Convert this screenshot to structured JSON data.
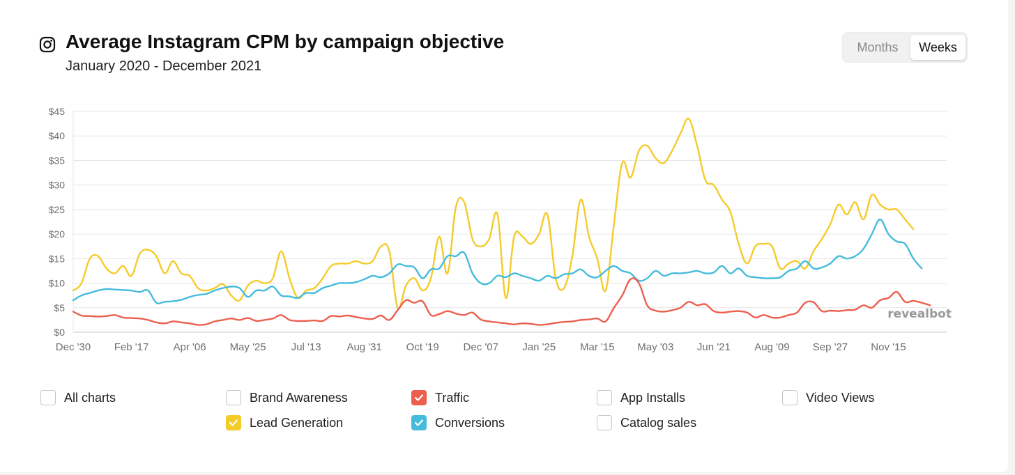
{
  "header": {
    "title": "Average Instagram CPM by campaign objective",
    "subtitle": "January 2020 - December 2021",
    "icon": "instagram-icon"
  },
  "toggle": {
    "months_label": "Months",
    "weeks_label": "Weeks",
    "selected": "Weeks"
  },
  "watermark": "revealbot",
  "colors": {
    "lead_generation": "#f5cb2a",
    "conversions": "#45bcdc",
    "traffic": "#ec5f4f",
    "grid": "#e6e6e6",
    "axis": "#c9c9c9"
  },
  "legend": [
    {
      "label": "All charts",
      "checked": false,
      "color": ""
    },
    {
      "label": "Brand Awareness",
      "checked": false,
      "color": ""
    },
    {
      "label": "Traffic",
      "checked": true,
      "color": "#ec5f4f"
    },
    {
      "label": "App Installs",
      "checked": false,
      "color": ""
    },
    {
      "label": "Video Views",
      "checked": false,
      "color": ""
    },
    {
      "label": "Lead Generation",
      "checked": true,
      "color": "#f5cb2a"
    },
    {
      "label": "Conversions",
      "checked": true,
      "color": "#45bcdc"
    },
    {
      "label": "Catalog sales",
      "checked": false,
      "color": ""
    }
  ],
  "chart_data": {
    "type": "line",
    "title": "Average Instagram CPM by campaign objective",
    "subtitle": "January 2020 - December 2021",
    "x_tick_labels": [
      "Dec '30",
      "Feb '17",
      "Apr '06",
      "May '25",
      "Jul '13",
      "Aug '31",
      "Oct '19",
      "Dec '07",
      "Jan '25",
      "Mar '15",
      "May '03",
      "Jun '21",
      "Aug '09",
      "Sep '27",
      "Nov '15"
    ],
    "y_tick_labels": [
      "$0",
      "$5",
      "$10",
      "$15",
      "$20",
      "$25",
      "$30",
      "$35",
      "$40",
      "$45"
    ],
    "ylim": [
      0,
      45
    ],
    "x_unit": "week",
    "xlim": [
      0,
      105
    ],
    "grid": true,
    "legend_position": "bottom",
    "series": [
      {
        "name": "Lead Generation",
        "color": "#f5cb2a",
        "values": [
          8.5,
          10,
          15,
          15.5,
          13,
          12,
          13.5,
          11.5,
          16,
          16.8,
          15.5,
          12,
          14.5,
          12,
          11.5,
          9,
          8.5,
          9,
          9.8,
          7.5,
          6.5,
          9.5,
          10.5,
          10,
          11,
          16.5,
          11,
          7,
          8.5,
          9,
          11,
          13.5,
          14,
          14,
          14.5,
          14,
          14.5,
          17.5,
          16.5,
          5,
          9.5,
          11,
          8.5,
          11,
          19.5,
          12,
          25.5,
          26.5,
          19,
          17.5,
          19,
          24,
          7,
          19.5,
          19.5,
          18,
          20,
          24,
          11,
          9,
          15.5,
          27,
          19.5,
          15,
          8.5,
          22,
          34.5,
          31.5,
          37,
          38,
          35.5,
          34.5,
          37,
          40.5,
          43.5,
          38,
          31,
          30,
          27,
          24.5,
          18,
          14,
          17.5,
          18,
          17.5,
          13,
          14,
          14.5,
          13,
          16.5,
          19,
          22,
          26,
          24,
          26.5,
          23,
          28,
          26,
          25,
          25,
          23,
          21
        ]
      },
      {
        "name": "Conversions",
        "color": "#45bcdc",
        "values": [
          6.5,
          7.5,
          8,
          8.5,
          8.8,
          8.7,
          8.6,
          8.5,
          8.2,
          8.5,
          6,
          6.2,
          6.3,
          6.6,
          7.2,
          7.6,
          7.8,
          8.5,
          9,
          9.3,
          9,
          7.2,
          8.5,
          8.5,
          9.3,
          7.5,
          7.3,
          7,
          8,
          8,
          9,
          9.5,
          10,
          10,
          10.2,
          10.8,
          11.5,
          11.2,
          12,
          13.8,
          13.5,
          13.2,
          11,
          12.8,
          13,
          15.5,
          15.5,
          16.2,
          12,
          10,
          10,
          11.5,
          11.2,
          12,
          11.5,
          11,
          10.5,
          11.5,
          11,
          11.8,
          12,
          12.8,
          11.5,
          11.2,
          12.5,
          13.5,
          12.5,
          12,
          10.5,
          11,
          12.5,
          11.5,
          12,
          12,
          12.2,
          12.5,
          12,
          12.2,
          13.5,
          12,
          13,
          11.5,
          11.2,
          11,
          11,
          11.2,
          12.5,
          13,
          14.5,
          13,
          13.2,
          14,
          15.5,
          15,
          15.5,
          17,
          20,
          23,
          20,
          18.5,
          18,
          15,
          13
        ]
      },
      {
        "name": "Traffic",
        "color": "#ec5f4f",
        "values": [
          4.2,
          3.4,
          3.3,
          3.2,
          3.3,
          3.5,
          3,
          2.9,
          2.8,
          2.5,
          2,
          1.8,
          2.2,
          2,
          1.8,
          1.5,
          1.6,
          2.2,
          2.5,
          2.8,
          2.5,
          2.9,
          2.3,
          2.5,
          2.8,
          3.5,
          2.5,
          2.3,
          2.3,
          2.4,
          2.3,
          3.3,
          3.2,
          3.4,
          3.1,
          2.8,
          2.7,
          3.4,
          2.5,
          4.5,
          6.5,
          6,
          6.3,
          3.5,
          3.7,
          4.3,
          3.8,
          3.5,
          4,
          2.6,
          2.2,
          2,
          1.8,
          1.6,
          1.8,
          1.7,
          1.5,
          1.6,
          1.9,
          2.1,
          2.2,
          2.5,
          2.6,
          2.8,
          2.2,
          5,
          7.5,
          10.8,
          10,
          5.5,
          4.4,
          4.2,
          4.5,
          5,
          6.2,
          5.5,
          5.7,
          4.3,
          4,
          4.2,
          4.3,
          4,
          3,
          3.5,
          3,
          3,
          3.5,
          4,
          6,
          6.1,
          4.3,
          4.4,
          4.3,
          4.5,
          4.6,
          5.5,
          5,
          6.5,
          7,
          8.2,
          6.2,
          6.4,
          6,
          5.5
        ]
      }
    ]
  }
}
